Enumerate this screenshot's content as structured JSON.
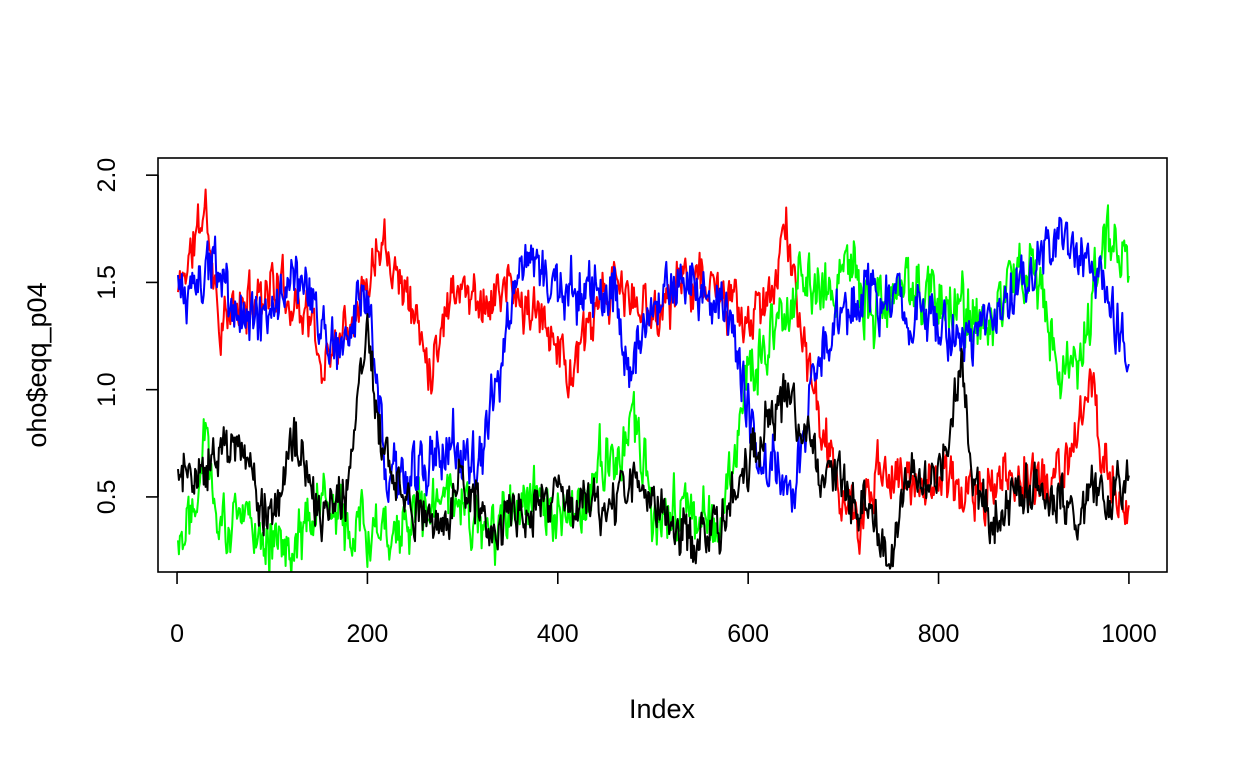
{
  "chart_data": {
    "type": "line",
    "title": "",
    "xlabel": "Index",
    "ylabel": "oho$eqq_p04",
    "xlim": [
      -20,
      1040
    ],
    "ylim": [
      0.15,
      2.08
    ],
    "x_ticks": [
      0,
      200,
      400,
      600,
      800,
      1000
    ],
    "y_ticks": [
      0.5,
      1.0,
      1.5,
      2.0
    ],
    "x_tick_labels": [
      "0",
      "200",
      "400",
      "600",
      "800",
      "1000"
    ],
    "y_tick_labels": [
      "0.5",
      "1.0",
      "1.5",
      "2.0"
    ],
    "grid": false,
    "legend": "none",
    "n_points": 1000,
    "series": [
      {
        "color": "#ff0000",
        "noise": 0.09,
        "seed": 11,
        "anchors": [
          [
            1,
            1.45
          ],
          [
            30,
            1.85
          ],
          [
            45,
            1.3
          ],
          [
            100,
            1.5
          ],
          [
            140,
            1.35
          ],
          [
            150,
            1.1
          ],
          [
            200,
            1.5
          ],
          [
            215,
            1.75
          ],
          [
            250,
            1.35
          ],
          [
            265,
            1.1
          ],
          [
            290,
            1.5
          ],
          [
            330,
            1.4
          ],
          [
            345,
            1.5
          ],
          [
            360,
            1.4
          ],
          [
            400,
            1.25
          ],
          [
            410,
            1.05
          ],
          [
            430,
            1.25
          ],
          [
            460,
            1.5
          ],
          [
            480,
            1.4
          ],
          [
            500,
            1.35
          ],
          [
            540,
            1.55
          ],
          [
            580,
            1.4
          ],
          [
            600,
            1.3
          ],
          [
            620,
            1.4
          ],
          [
            640,
            1.75
          ],
          [
            655,
            1.3
          ],
          [
            670,
            0.95
          ],
          [
            690,
            0.6
          ],
          [
            715,
            0.35
          ],
          [
            740,
            0.65
          ],
          [
            770,
            0.55
          ],
          [
            800,
            0.6
          ],
          [
            840,
            0.5
          ],
          [
            880,
            0.6
          ],
          [
            920,
            0.55
          ],
          [
            945,
            0.75
          ],
          [
            960,
            1.05
          ],
          [
            975,
            0.65
          ],
          [
            1000,
            0.4
          ]
        ]
      },
      {
        "color": "#00ff00",
        "noise": 0.11,
        "seed": 22,
        "anchors": [
          [
            1,
            0.3
          ],
          [
            20,
            0.55
          ],
          [
            30,
            0.85
          ],
          [
            45,
            0.35
          ],
          [
            80,
            0.4
          ],
          [
            110,
            0.25
          ],
          [
            150,
            0.45
          ],
          [
            200,
            0.35
          ],
          [
            250,
            0.4
          ],
          [
            290,
            0.5
          ],
          [
            330,
            0.3
          ],
          [
            360,
            0.55
          ],
          [
            400,
            0.35
          ],
          [
            430,
            0.45
          ],
          [
            445,
            0.75
          ],
          [
            460,
            0.55
          ],
          [
            480,
            0.85
          ],
          [
            500,
            0.45
          ],
          [
            540,
            0.45
          ],
          [
            570,
            0.35
          ],
          [
            590,
            0.75
          ],
          [
            600,
            1.1
          ],
          [
            630,
            1.3
          ],
          [
            660,
            1.5
          ],
          [
            690,
            1.45
          ],
          [
            710,
            1.6
          ],
          [
            730,
            1.35
          ],
          [
            760,
            1.45
          ],
          [
            800,
            1.45
          ],
          [
            830,
            1.35
          ],
          [
            860,
            1.3
          ],
          [
            880,
            1.55
          ],
          [
            900,
            1.55
          ],
          [
            930,
            1.05
          ],
          [
            950,
            1.2
          ],
          [
            970,
            1.6
          ],
          [
            985,
            1.75
          ],
          [
            1000,
            1.55
          ]
        ]
      },
      {
        "color": "#0000ff",
        "noise": 0.1,
        "seed": 33,
        "anchors": [
          [
            1,
            1.5
          ],
          [
            10,
            1.4
          ],
          [
            40,
            1.6
          ],
          [
            60,
            1.35
          ],
          [
            100,
            1.35
          ],
          [
            120,
            1.55
          ],
          [
            150,
            1.3
          ],
          [
            170,
            1.2
          ],
          [
            200,
            1.4
          ],
          [
            210,
            1.0
          ],
          [
            220,
            0.55
          ],
          [
            250,
            0.6
          ],
          [
            290,
            0.75
          ],
          [
            320,
            0.65
          ],
          [
            340,
            1.1
          ],
          [
            360,
            1.6
          ],
          [
            390,
            1.5
          ],
          [
            430,
            1.45
          ],
          [
            460,
            1.45
          ],
          [
            475,
            1.1
          ],
          [
            500,
            1.35
          ],
          [
            530,
            1.5
          ],
          [
            560,
            1.45
          ],
          [
            580,
            1.35
          ],
          [
            595,
            1.0
          ],
          [
            610,
            0.7
          ],
          [
            625,
            0.65
          ],
          [
            650,
            0.55
          ],
          [
            670,
            1.1
          ],
          [
            690,
            1.3
          ],
          [
            720,
            1.45
          ],
          [
            760,
            1.4
          ],
          [
            800,
            1.3
          ],
          [
            830,
            1.2
          ],
          [
            860,
            1.35
          ],
          [
            880,
            1.5
          ],
          [
            920,
            1.7
          ],
          [
            950,
            1.6
          ],
          [
            970,
            1.5
          ],
          [
            985,
            1.3
          ],
          [
            1000,
            1.1
          ]
        ]
      },
      {
        "color": "#000000",
        "noise": 0.09,
        "seed": 44,
        "anchors": [
          [
            1,
            0.6
          ],
          [
            30,
            0.6
          ],
          [
            50,
            0.75
          ],
          [
            70,
            0.7
          ],
          [
            100,
            0.35
          ],
          [
            120,
            0.8
          ],
          [
            150,
            0.4
          ],
          [
            180,
            0.55
          ],
          [
            200,
            1.35
          ],
          [
            215,
            0.7
          ],
          [
            250,
            0.45
          ],
          [
            280,
            0.35
          ],
          [
            300,
            0.65
          ],
          [
            330,
            0.3
          ],
          [
            360,
            0.45
          ],
          [
            400,
            0.5
          ],
          [
            440,
            0.45
          ],
          [
            480,
            0.55
          ],
          [
            500,
            0.45
          ],
          [
            540,
            0.3
          ],
          [
            570,
            0.35
          ],
          [
            590,
            0.6
          ],
          [
            610,
            0.75
          ],
          [
            640,
            1.0
          ],
          [
            660,
            0.8
          ],
          [
            680,
            0.6
          ],
          [
            700,
            0.55
          ],
          [
            720,
            0.45
          ],
          [
            750,
            0.25
          ],
          [
            770,
            0.65
          ],
          [
            790,
            0.55
          ],
          [
            810,
            0.7
          ],
          [
            825,
            1.15
          ],
          [
            835,
            0.55
          ],
          [
            860,
            0.4
          ],
          [
            900,
            0.55
          ],
          [
            940,
            0.45
          ],
          [
            960,
            0.5
          ],
          [
            980,
            0.5
          ],
          [
            1000,
            0.6
          ]
        ]
      }
    ]
  }
}
